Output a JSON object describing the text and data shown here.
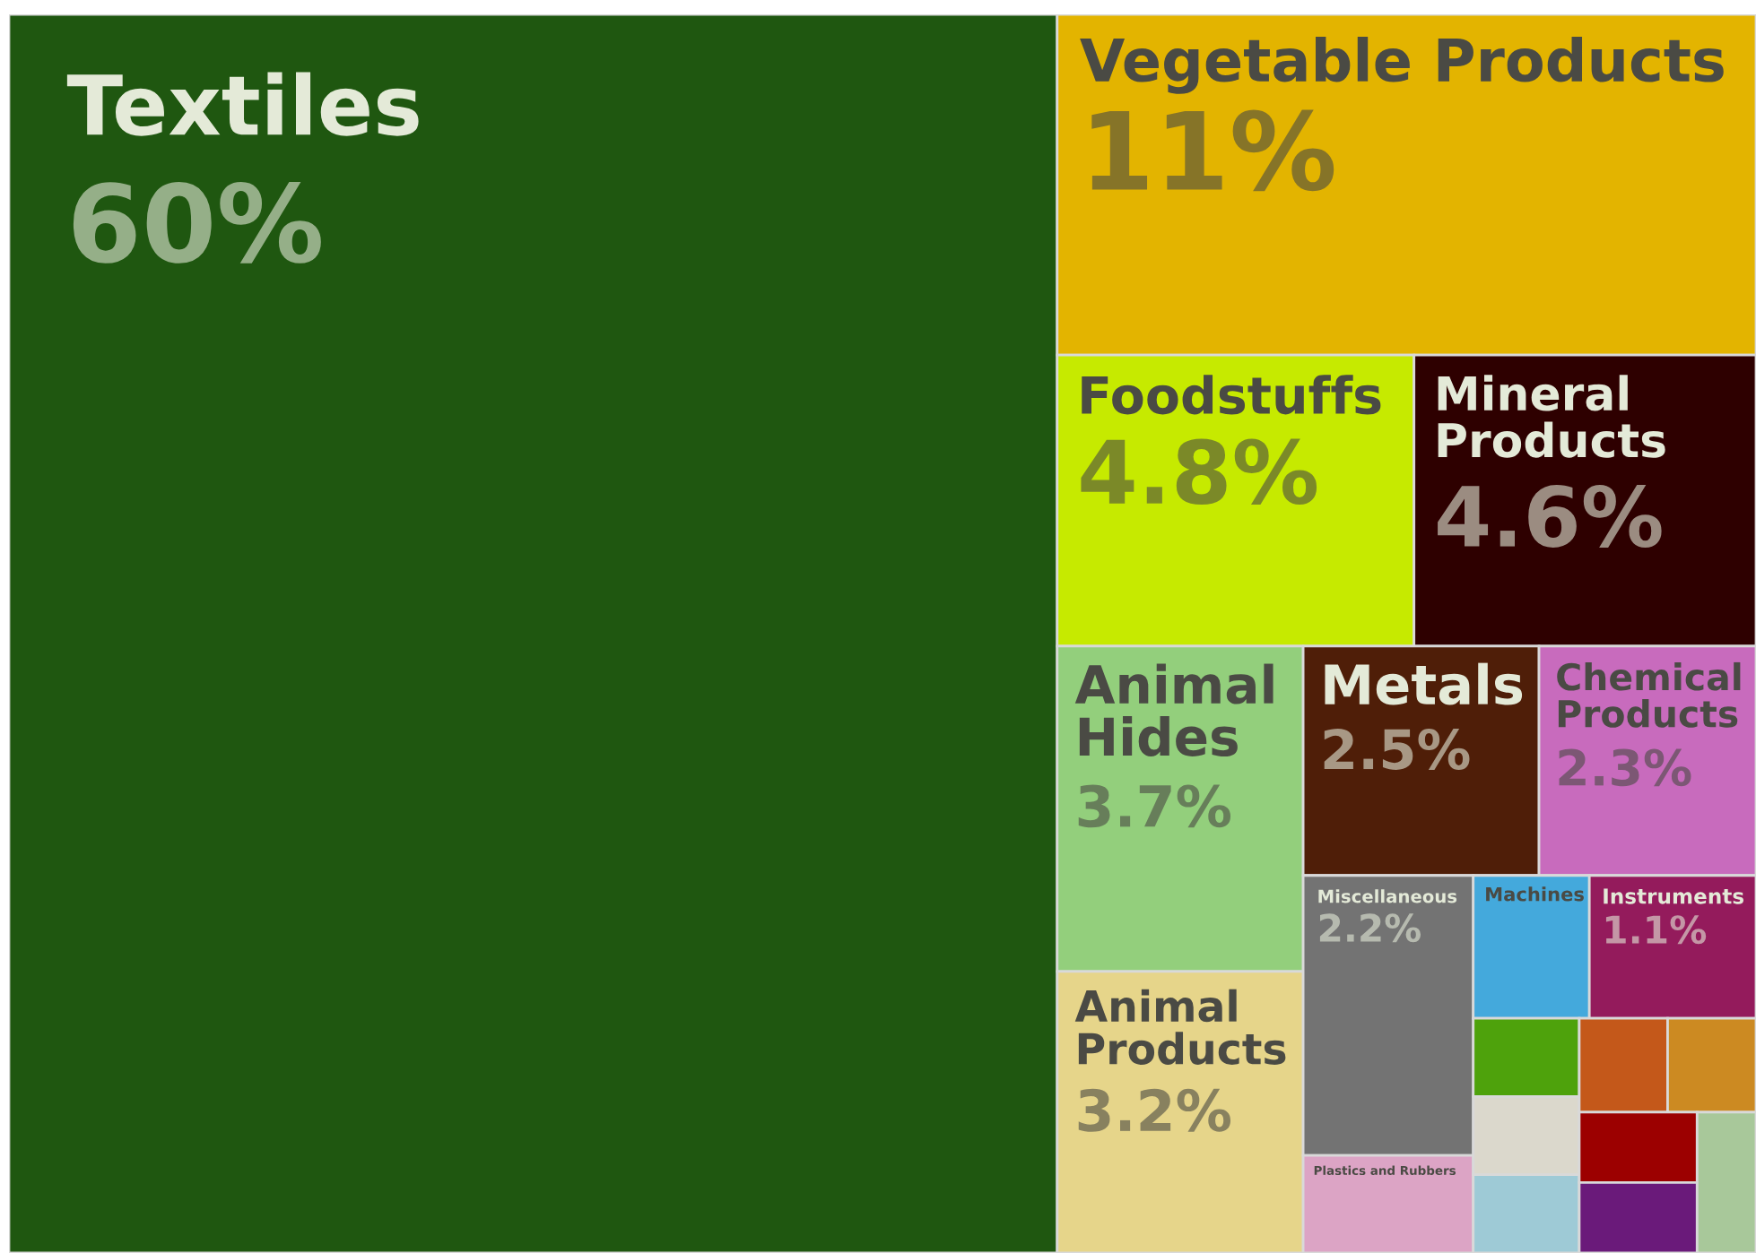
{
  "chart_data": {
    "type": "other",
    "categories": [
      "Textiles",
      "Vegetable Products",
      "Foodstuffs",
      "Mineral Products",
      "Animal Hides",
      "Animal Products",
      "Metals",
      "Chemical Products",
      "Miscellaneous",
      "Plastics and Rubbers",
      "Machines",
      "Instruments",
      null,
      null,
      null,
      null,
      null,
      null,
      null,
      null
    ],
    "values": [
      60,
      11,
      4.8,
      4.6,
      3.7,
      3.2,
      2.5,
      2.3,
      2.2,
      null,
      null,
      1.1,
      null,
      null,
      null,
      null,
      null,
      null,
      null,
      null
    ],
    "value_labels": [
      "60%",
      "11%",
      "4.8%",
      "4.6%",
      "3.7%",
      "3.2%",
      "2.5%",
      "2.3%",
      "2.2%",
      null,
      null,
      "1.1%",
      null,
      null,
      null,
      null,
      null,
      null,
      null,
      null
    ],
    "colors": [
      "#1f5710",
      "#e3b400",
      "#c6ea00",
      "#2e0000",
      "#93cf7c",
      "#e6d58a",
      "#4f1e08",
      "#c86bbd",
      "#737373",
      "#dca4c5",
      "#44a9dc",
      "#941b5c",
      "#4ea20c",
      "#dbd8cc",
      "#9ecad6",
      "#c4581a",
      "#cc8a22",
      "#9c0000",
      "#6a1a7a",
      "#a8c89a"
    ]
  }
}
